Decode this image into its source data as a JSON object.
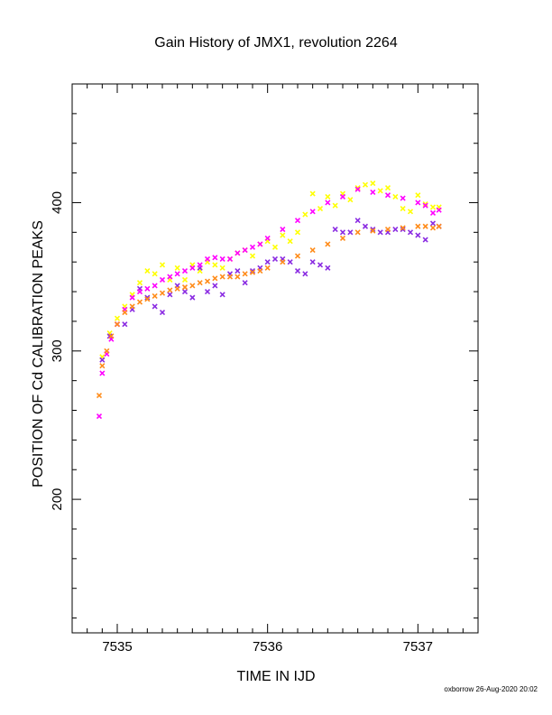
{
  "chart_data": {
    "type": "scatter",
    "title": "Gain History of JMX1, revolution 2264",
    "xlabel": "TIME IN IJD",
    "ylabel": "POSITION OF Cd CALIBRATION PEAKS",
    "xlim": [
      7534.7,
      7537.4
    ],
    "ylim": [
      110,
      480
    ],
    "xticks": [
      7535,
      7536,
      7537
    ],
    "yticks": [
      200,
      300,
      400
    ],
    "grid": false,
    "legend": "none",
    "colors": {
      "yellow": "#ffff00",
      "magenta": "#ff00ff",
      "purple": "#8a2be2",
      "orange": "#ff8c1a"
    },
    "series": [
      {
        "color": "yellow",
        "marker": "x",
        "x": [
          7534.9,
          7534.95,
          7535.0,
          7535.05,
          7535.1,
          7535.15,
          7535.2,
          7535.25,
          7535.3,
          7535.35,
          7535.4,
          7535.45,
          7535.5,
          7535.55,
          7535.6,
          7535.65,
          7535.7,
          7535.75,
          7535.8,
          7535.85,
          7535.9,
          7535.95,
          7536.0,
          7536.05,
          7536.1,
          7536.15,
          7536.2,
          7536.25,
          7536.3,
          7536.35,
          7536.4,
          7536.45,
          7536.5,
          7536.55,
          7536.6,
          7536.65,
          7536.7,
          7536.75,
          7536.8,
          7536.85,
          7536.9,
          7536.95,
          7537.0,
          7537.05,
          7537.1,
          7537.14
        ],
        "y": [
          296,
          312,
          322,
          330,
          338,
          346,
          354,
          352,
          358,
          348,
          356,
          348,
          358,
          354,
          360,
          358,
          356,
          362,
          366,
          368,
          364,
          372,
          374,
          370,
          378,
          374,
          380,
          392,
          406,
          396,
          404,
          398,
          406,
          402,
          410,
          412,
          413,
          408,
          410,
          404,
          396,
          394,
          405,
          399,
          397,
          397
        ]
      },
      {
        "color": "purple",
        "marker": "x",
        "x": [
          7534.9,
          7534.95,
          7535.0,
          7535.05,
          7535.1,
          7535.15,
          7535.2,
          7535.25,
          7535.3,
          7535.35,
          7535.4,
          7535.45,
          7535.5,
          7535.55,
          7535.6,
          7535.65,
          7535.7,
          7535.75,
          7535.8,
          7535.85,
          7535.9,
          7535.95,
          7536.0,
          7536.05,
          7536.1,
          7536.15,
          7536.2,
          7536.25,
          7536.3,
          7536.35,
          7536.4,
          7536.45,
          7536.5,
          7536.55,
          7536.6,
          7536.65,
          7536.7,
          7536.75,
          7536.8,
          7536.85,
          7536.9,
          7536.95,
          7537.0,
          7537.05,
          7537.1,
          7537.14
        ],
        "y": [
          294,
          310,
          318,
          318,
          328,
          342,
          336,
          330,
          326,
          338,
          344,
          340,
          336,
          356,
          340,
          344,
          338,
          352,
          354,
          346,
          354,
          356,
          360,
          362,
          362,
          360,
          354,
          352,
          360,
          358,
          356,
          382,
          380,
          380,
          388,
          384,
          382,
          380,
          380,
          382,
          382,
          380,
          378,
          375,
          386,
          384
        ]
      },
      {
        "color": "magenta",
        "marker": "x",
        "x": [
          7534.88,
          7534.9,
          7534.93,
          7534.96,
          7535.0,
          7535.05,
          7535.1,
          7535.15,
          7535.2,
          7535.25,
          7535.3,
          7535.35,
          7535.4,
          7535.45,
          7535.5,
          7535.55,
          7535.6,
          7535.65,
          7535.7,
          7535.75,
          7535.8,
          7535.85,
          7535.9,
          7535.95,
          7536.0,
          7536.1,
          7536.2,
          7536.3,
          7536.4,
          7536.5,
          7536.6,
          7536.7,
          7536.8,
          7536.9,
          7537.0,
          7537.05,
          7537.1,
          7537.14
        ],
        "y": [
          256,
          285,
          298,
          308,
          318,
          328,
          336,
          340,
          342,
          344,
          348,
          350,
          352,
          354,
          356,
          358,
          362,
          363,
          362,
          362,
          366,
          368,
          370,
          372,
          376,
          382,
          388,
          394,
          400,
          404,
          409,
          407,
          405,
          403,
          400,
          398,
          393,
          395
        ]
      },
      {
        "color": "orange",
        "marker": "x",
        "x": [
          7534.88,
          7534.9,
          7534.93,
          7534.96,
          7535.0,
          7535.05,
          7535.1,
          7535.15,
          7535.2,
          7535.25,
          7535.3,
          7535.35,
          7535.4,
          7535.45,
          7535.5,
          7535.55,
          7535.6,
          7535.65,
          7535.7,
          7535.75,
          7535.8,
          7535.85,
          7535.9,
          7535.95,
          7536.0,
          7536.1,
          7536.2,
          7536.3,
          7536.4,
          7536.5,
          7536.6,
          7536.7,
          7536.8,
          7536.9,
          7537.0,
          7537.05,
          7537.1,
          7537.14
        ],
        "y": [
          270,
          290,
          300,
          310,
          318,
          326,
          330,
          333,
          335,
          337,
          339,
          341,
          342,
          343,
          344,
          346,
          347,
          349,
          350,
          350,
          350,
          352,
          353,
          354,
          356,
          360,
          364,
          368,
          372,
          376,
          380,
          381,
          382,
          383,
          384,
          384,
          383,
          384
        ]
      }
    ]
  },
  "footer": {
    "credit": "oxborrow 26-Aug-2020 20:02"
  }
}
